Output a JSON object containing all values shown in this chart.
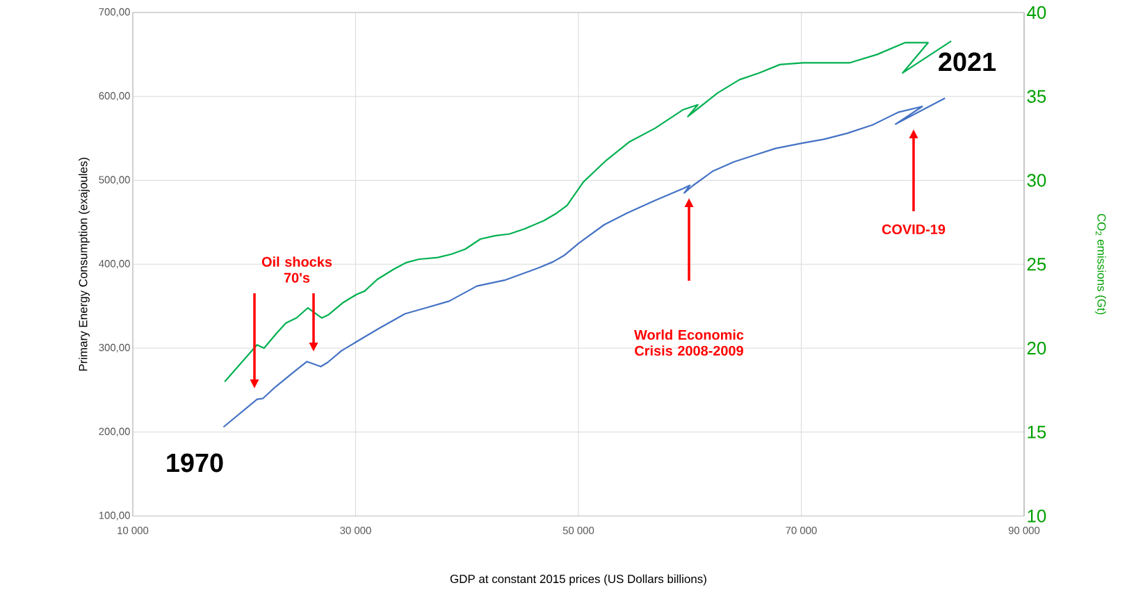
{
  "chart_data": {
    "type": "line",
    "xlabel": "GDP at constant 2015 prices (US Dollars billions)",
    "ylabel": "Primary Energy Consumption (exajoules)",
    "y2label": "CO$_{2}$ emissions (Gt)",
    "series": [
      {
        "color": "#4472c4",
        "x": [
          18140,
          21150,
          21670,
          22820,
          24480,
          25620,
          26870,
          27490,
          28740,
          30500,
          32160,
          34440,
          36310,
          38390,
          39640,
          40890,
          43380,
          44830,
          46490,
          47740,
          48770,
          50020,
          52300,
          54380,
          56870,
          59370,
          60000,
          59500,
          60300,
          62070,
          63940,
          65810,
          67680,
          69960,
          72040,
          74110,
          76400,
          78680,
          80860,
          78470,
          82900
        ],
        "values": [
          206,
          239,
          240,
          254,
          272,
          284,
          278,
          283,
          297,
          311,
          324,
          341,
          348,
          356,
          365,
          374,
          381,
          388,
          396,
          403,
          411,
          425,
          447,
          461,
          476,
          490,
          494,
          485,
          494,
          511,
          522,
          530,
          538,
          544,
          549,
          556,
          566,
          581,
          588,
          567,
          598
        ]
      },
      {
        "color": "#00b050",
        "axis": "y2",
        "x": [
          18250,
          21150,
          21780,
          22920,
          23750,
          24690,
          25720,
          26970,
          27590,
          28840,
          30080,
          30810,
          31950,
          33410,
          34550,
          35690,
          37350,
          38600,
          39840,
          41200,
          42540,
          43790,
          45140,
          46900,
          47940,
          48980,
          50440,
          52510,
          54590,
          56870,
          59370,
          60720,
          59820,
          62480,
          64460,
          66220,
          68090,
          70170,
          72240,
          74320,
          76810,
          79300,
          81380,
          79100,
          83460
        ],
        "values": [
          18.0,
          20.2,
          20.0,
          20.9,
          21.5,
          21.8,
          22.4,
          21.8,
          22.0,
          22.7,
          23.2,
          23.4,
          24.1,
          24.7,
          25.1,
          25.3,
          25.4,
          25.6,
          25.9,
          26.5,
          26.7,
          26.8,
          27.1,
          27.6,
          28.0,
          28.5,
          29.9,
          31.2,
          32.3,
          33.1,
          34.2,
          34.5,
          33.8,
          35.2,
          36.0,
          36.4,
          36.9,
          37.0,
          37.0,
          37.0,
          37.5,
          38.2,
          38.2,
          36.4,
          38.3
        ]
      }
    ],
    "xlim": [
      10000,
      90000
    ],
    "xticks": [
      {
        "value": 10000,
        "label": "10 000"
      },
      {
        "value": 30000,
        "label": "30 000"
      },
      {
        "value": 50000,
        "label": "50 000"
      },
      {
        "value": 70000,
        "label": "70 000"
      },
      {
        "value": 90000,
        "label": "90 000"
      }
    ],
    "ylim": [
      100,
      700
    ],
    "yticks": [
      {
        "value": 100,
        "label": "100,00"
      },
      {
        "value": 200,
        "label": "200,00"
      },
      {
        "value": 300,
        "label": "300,00"
      },
      {
        "value": 400,
        "label": "400,00"
      },
      {
        "value": 500,
        "label": "500,00"
      },
      {
        "value": 600,
        "label": "600,00"
      },
      {
        "value": 700,
        "label": "700,00"
      }
    ],
    "y2lim": [
      10,
      40
    ],
    "y2ticks": [
      10,
      15,
      20,
      25,
      30,
      35,
      40
    ],
    "grid": true,
    "annotations": [
      "Oil shocks 70's",
      "World Economic Crisis 2008-2009",
      "COVID-19",
      "1970",
      "2021"
    ]
  }
}
